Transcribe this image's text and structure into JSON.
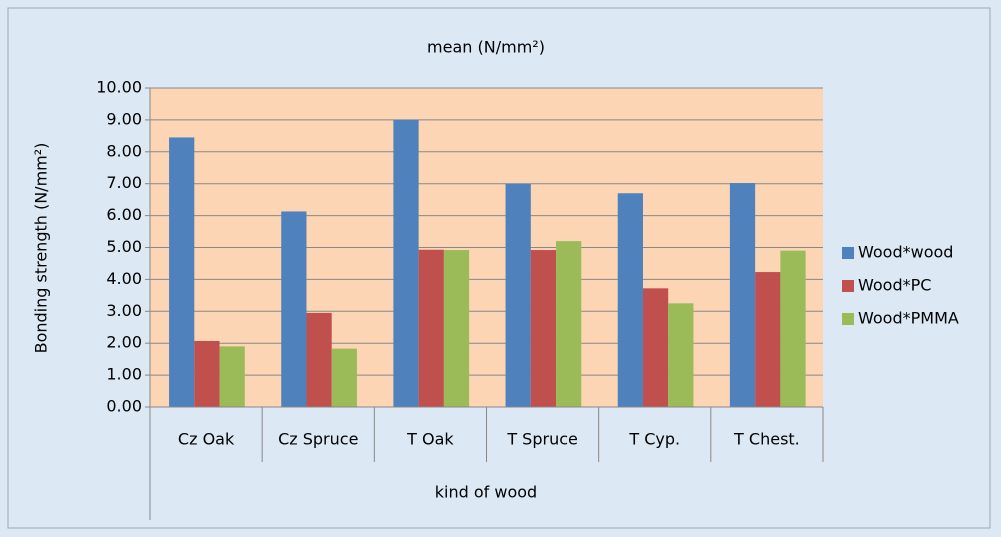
{
  "chart_data": {
    "type": "bar",
    "title": "mean (N/mm²)",
    "y_label": "Bonding strength (N/mm²)",
    "x_label": "kind of wood",
    "categories": [
      "Cz Oak",
      "Cz Spruce",
      "T Oak",
      "T Spruce",
      "T Cyp.",
      "T Chest."
    ],
    "series": [
      {
        "name": "Wood*wood",
        "color": "#4f81bd",
        "values": [
          8.45,
          6.13,
          9.0,
          7.0,
          6.7,
          7.02
        ]
      },
      {
        "name": "Wood*PC",
        "color": "#c0504d",
        "values": [
          2.07,
          2.95,
          4.93,
          4.92,
          3.72,
          4.23
        ]
      },
      {
        "name": "Wood*PMMA",
        "color": "#9bbb59",
        "values": [
          1.9,
          1.83,
          4.92,
          5.2,
          3.25,
          4.9
        ]
      }
    ],
    "ylim": [
      0,
      10
    ],
    "yticks": [
      {
        "value": 0,
        "label": "0.00"
      },
      {
        "value": 1,
        "label": "1.00"
      },
      {
        "value": 2,
        "label": "2.00"
      },
      {
        "value": 3,
        "label": "3.00"
      },
      {
        "value": 4,
        "label": "4.00"
      },
      {
        "value": 5,
        "label": "5.00"
      },
      {
        "value": 6,
        "label": "6.00"
      },
      {
        "value": 7,
        "label": "7.00"
      },
      {
        "value": 8,
        "label": "8.00"
      },
      {
        "value": 9,
        "label": "9.00"
      },
      {
        "value": 10,
        "label": "10.00"
      }
    ],
    "grid": true,
    "legend": "right"
  }
}
